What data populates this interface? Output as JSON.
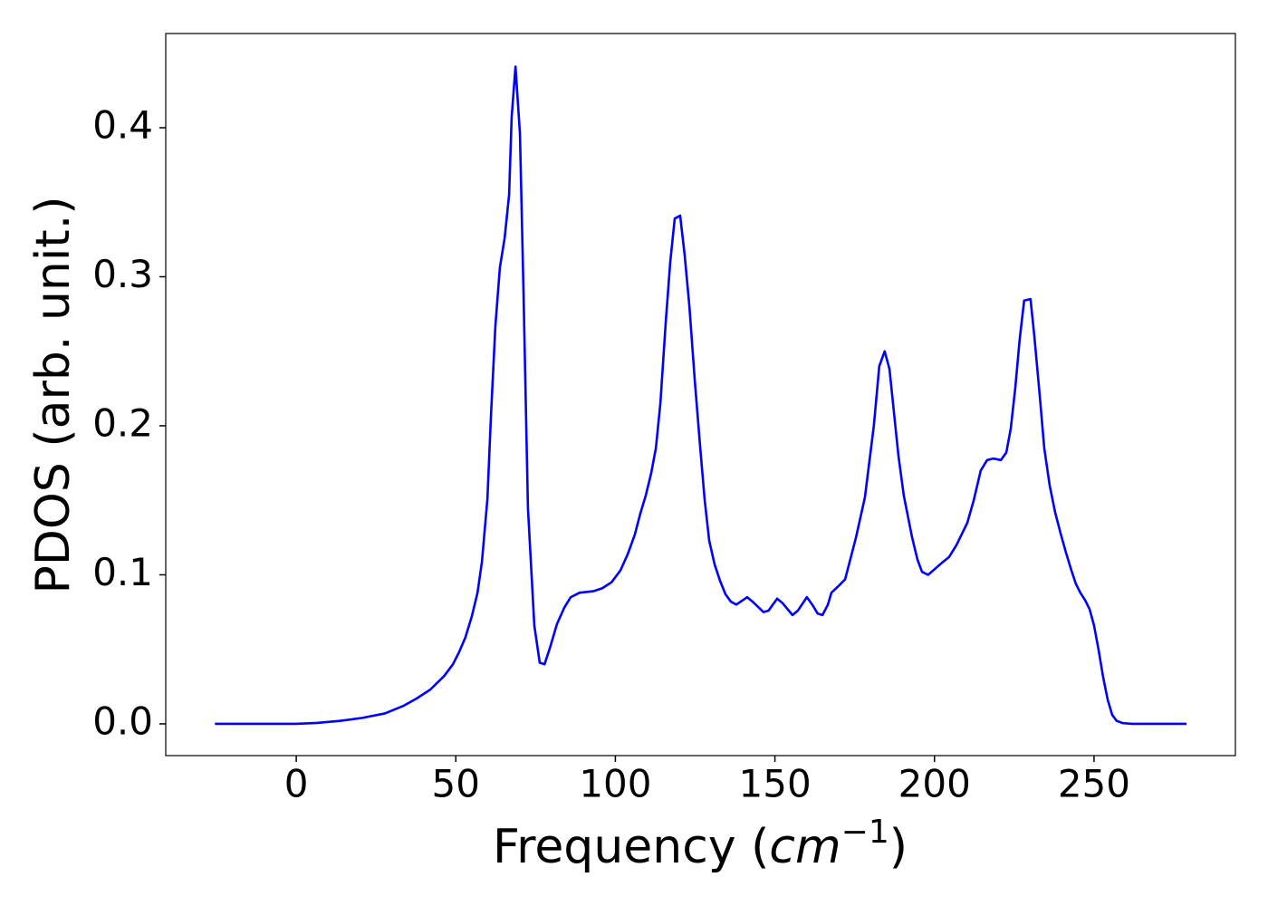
{
  "chart_data": {
    "type": "line",
    "xlabel": [
      "Frequency (",
      "cm",
      "−1",
      ")"
    ],
    "ylabel": "PDOS (arb. unit.)",
    "x": [
      -25.5,
      0,
      6.5,
      13.6,
      20.7,
      27.8,
      33.5,
      37.7,
      42,
      46.3,
      49.1,
      51,
      53,
      55,
      56.8,
      58.2,
      59.9,
      61,
      62.4,
      63.8,
      65.3,
      66.7,
      67.5,
      68.7,
      70.1,
      71.2,
      72.6,
      74.6,
      76.3,
      77.8,
      79.5,
      81.7,
      84,
      86,
      88.8,
      93.1,
      95.9,
      98.8,
      101.6,
      103.9,
      106.1,
      107.8,
      109.5,
      111.2,
      112.7,
      114.1,
      115.8,
      117.2,
      118.6,
      120.3,
      121.7,
      123.2,
      124.9,
      126.6,
      128,
      129.4,
      131.1,
      132.8,
      134.5,
      136.2,
      137.9,
      141.3,
      143,
      146.4,
      148,
      150.7,
      152.4,
      155.5,
      157.2,
      160,
      161.7,
      163.4,
      164.9,
      166.6,
      167.7,
      169.7,
      172,
      175.4,
      178.2,
      181,
      182.7,
      184.4,
      185.9,
      188.7,
      190.4,
      193,
      194.7,
      196.1,
      198,
      202.3,
      204.6,
      206.9,
      210.3,
      212.3,
      214.5,
      216.5,
      218.5,
      220.8,
      222.5,
      223.9,
      225.3,
      226.7,
      228.1,
      230.1,
      231.3,
      233,
      234.4,
      236.1,
      237.8,
      239.5,
      241.2,
      242.9,
      244.3,
      245.7,
      247.2,
      248.6,
      250,
      251.4,
      252.8,
      254.3,
      255.7,
      257.1,
      259,
      262,
      279
    ],
    "series": [
      {
        "name": "PDOS",
        "color": "#0000ff",
        "values": [
          0,
          0,
          0.0006,
          0.002,
          0.004,
          0.007,
          0.012,
          0.017,
          0.023,
          0.032,
          0.04,
          0.048,
          0.058,
          0.072,
          0.088,
          0.109,
          0.151,
          0.206,
          0.267,
          0.306,
          0.326,
          0.355,
          0.407,
          0.441,
          0.396,
          0.291,
          0.145,
          0.066,
          0.041,
          0.04,
          0.051,
          0.067,
          0.078,
          0.085,
          0.088,
          0.089,
          0.091,
          0.095,
          0.103,
          0.114,
          0.127,
          0.141,
          0.153,
          0.168,
          0.185,
          0.215,
          0.27,
          0.31,
          0.339,
          0.341,
          0.315,
          0.28,
          0.23,
          0.185,
          0.15,
          0.123,
          0.107,
          0.096,
          0.087,
          0.082,
          0.08,
          0.085,
          0.082,
          0.075,
          0.076,
          0.084,
          0.081,
          0.073,
          0.076,
          0.085,
          0.08,
          0.074,
          0.073,
          0.08,
          0.088,
          0.092,
          0.097,
          0.125,
          0.152,
          0.2,
          0.24,
          0.25,
          0.238,
          0.18,
          0.153,
          0.125,
          0.11,
          0.102,
          0.1,
          0.108,
          0.112,
          0.12,
          0.135,
          0.15,
          0.17,
          0.177,
          0.178,
          0.177,
          0.182,
          0.198,
          0.225,
          0.258,
          0.284,
          0.285,
          0.26,
          0.22,
          0.185,
          0.16,
          0.142,
          0.128,
          0.115,
          0.103,
          0.094,
          0.088,
          0.083,
          0.077,
          0.066,
          0.05,
          0.032,
          0.016,
          0.006,
          0.002,
          0.0005,
          0,
          0
        ]
      }
    ],
    "xlim": [
      -40.9,
      294.3
    ],
    "ylim": [
      -0.0213,
      0.4632
    ],
    "xticks": [
      0,
      50,
      100,
      150,
      200,
      250
    ],
    "yticks": [
      {
        "value": 0,
        "label": "0.0"
      },
      0.1,
      0.2,
      0.3,
      0.4
    ]
  }
}
